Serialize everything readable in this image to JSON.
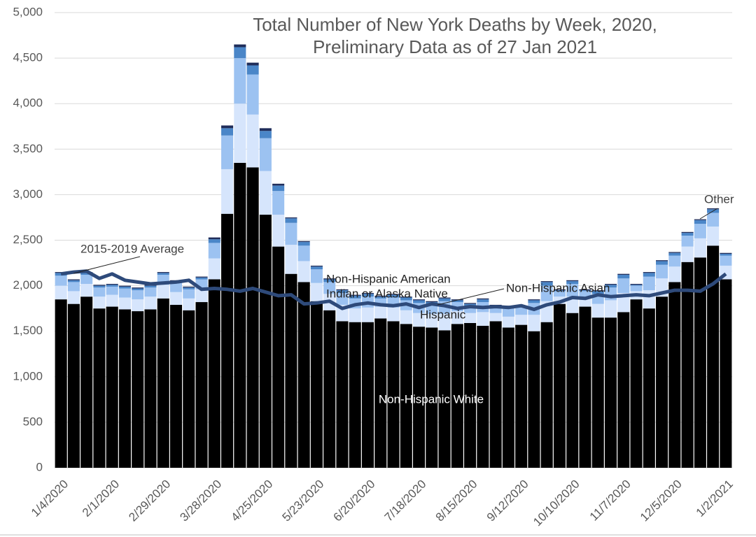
{
  "chart_data": {
    "type": "stacked-bar-line",
    "title": "Total Number of New York Deaths by Week, 2020,",
    "subtitle": "Preliminary Data as of 27 Jan 2021",
    "categories": [
      "1/4/2020",
      null,
      null,
      null,
      "2/1/2020",
      null,
      null,
      null,
      "2/29/2020",
      null,
      null,
      null,
      "3/28/2020",
      null,
      null,
      null,
      "4/25/2020",
      null,
      null,
      null,
      "5/23/2020",
      null,
      null,
      null,
      "6/20/2020",
      null,
      null,
      null,
      "7/18/2020",
      null,
      null,
      null,
      "8/15/2020",
      null,
      null,
      null,
      "9/12/2020",
      null,
      null,
      null,
      "10/10/2020",
      null,
      null,
      null,
      "11/7/2020",
      null,
      null,
      null,
      "12/5/2020",
      null,
      null,
      null,
      "1/2/2021"
    ],
    "series": [
      {
        "name": "Non-Hispanic White",
        "color": "#000000",
        "values": [
          1850,
          1800,
          1880,
          1750,
          1770,
          1740,
          1720,
          1740,
          1860,
          1790,
          1730,
          1820,
          2070,
          2790,
          3350,
          3300,
          2780,
          2430,
          2130,
          2040,
          1830,
          1730,
          1610,
          1600,
          1600,
          1640,
          1610,
          1580,
          1550,
          1540,
          1510,
          1580,
          1590,
          1560,
          1610,
          1540,
          1570,
          1500,
          1600,
          1800,
          1700,
          1770,
          1650,
          1650,
          1710,
          1850,
          1750,
          1880,
          2040,
          2260,
          2310,
          2440,
          2070
        ]
      },
      {
        "name": "Hispanic",
        "color": "#d6e5fc",
        "values": [
          150,
          140,
          140,
          130,
          130,
          130,
          130,
          140,
          150,
          140,
          130,
          140,
          230,
          490,
          650,
          580,
          480,
          350,
          320,
          230,
          200,
          180,
          180,
          150,
          160,
          130,
          150,
          150,
          150,
          150,
          180,
          140,
          110,
          150,
          90,
          120,
          110,
          180,
          230,
          80,
          180,
          100,
          150,
          190,
          210,
          90,
          200,
          200,
          170,
          170,
          210,
          210,
          150
        ]
      },
      {
        "name": "Non-Hispanic Asian",
        "color": "#9cc2f1",
        "values": [
          110,
          100,
          100,
          100,
          90,
          100,
          100,
          100,
          110,
          100,
          100,
          110,
          170,
          370,
          500,
          440,
          360,
          260,
          240,
          170,
          150,
          130,
          130,
          110,
          120,
          90,
          110,
          110,
          110,
          110,
          140,
          100,
          80,
          110,
          70,
          90,
          80,
          130,
          170,
          60,
          140,
          70,
          110,
          140,
          160,
          60,
          150,
          150,
          120,
          120,
          160,
          150,
          110
        ]
      },
      {
        "name": "Non-Hispanic American Indian or Alaska Native",
        "color": "#4a86c8",
        "values": [
          30,
          20,
          20,
          20,
          20,
          20,
          20,
          20,
          20,
          20,
          20,
          20,
          40,
          80,
          120,
          100,
          80,
          60,
          50,
          40,
          30,
          30,
          30,
          30,
          30,
          20,
          30,
          30,
          30,
          20,
          30,
          20,
          20,
          30,
          10,
          20,
          10,
          30,
          40,
          10,
          30,
          10,
          30,
          30,
          40,
          10,
          40,
          40,
          30,
          30,
          40,
          40,
          20
        ]
      },
      {
        "name": "Other",
        "color": "#1f2d5a",
        "values": [
          10,
          10,
          10,
          10,
          10,
          10,
          10,
          10,
          10,
          10,
          10,
          10,
          20,
          30,
          30,
          30,
          30,
          20,
          10,
          10,
          10,
          10,
          10,
          10,
          10,
          10,
          10,
          10,
          10,
          10,
          10,
          10,
          10,
          10,
          10,
          10,
          10,
          10,
          10,
          10,
          10,
          10,
          10,
          10,
          10,
          10,
          10,
          10,
          10,
          10,
          10,
          10,
          10
        ]
      },
      {
        "name": "2015-2019 Average",
        "color": "#2e4a7a",
        "type": "line",
        "values": [
          2130,
          2150,
          2160,
          2080,
          2130,
          2060,
          2040,
          2020,
          2030,
          2040,
          2060,
          1960,
          1970,
          1960,
          1940,
          1970,
          1930,
          1890,
          1900,
          1800,
          1810,
          1830,
          1750,
          1790,
          1810,
          1790,
          1780,
          1800,
          1760,
          1800,
          1780,
          1750,
          1770,
          1760,
          1770,
          1760,
          1780,
          1740,
          1790,
          1820,
          1870,
          1860,
          1900,
          1880,
          1890,
          1900,
          1890,
          1920,
          1950,
          1950,
          1940,
          2020,
          2130
        ]
      }
    ],
    "ylim": [
      0,
      5000
    ],
    "yticks": [
      0,
      500,
      {
        "value": 1000,
        "label": "1,000"
      },
      {
        "value": 1500,
        "label": "1,500"
      },
      {
        "value": 2000,
        "label": "2,000"
      },
      {
        "value": 2500,
        "label": "2,500"
      },
      {
        "value": 3000,
        "label": "3,000"
      },
      {
        "value": 3500,
        "label": "3,500"
      },
      {
        "value": 4000,
        "label": "4,000"
      },
      {
        "value": 4500,
        "label": "4,500"
      },
      {
        "value": 5000,
        "label": "5,000"
      }
    ],
    "grid": true,
    "annotations": [
      {
        "text": "2015-2019 Average"
      },
      {
        "lines": [
          "Non-Hispanic American",
          "Indian or Alaska Native"
        ]
      },
      {
        "text": "Non-Hispanic Asian"
      },
      {
        "text": "Hispanic"
      },
      {
        "text": "Non-Hispanic White"
      },
      {
        "text": "Other"
      }
    ]
  }
}
